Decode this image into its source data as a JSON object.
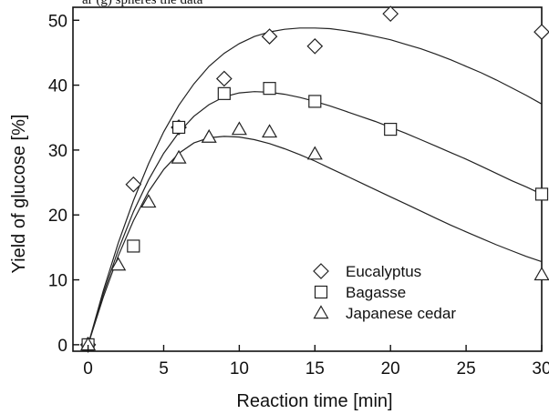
{
  "top_clipped_text": "ar (g) spheres the data",
  "chart_data": {
    "type": "scatter",
    "xlabel": "Reaction time [min]",
    "ylabel": "Yield of glucose [%]",
    "xlim": [
      -1,
      30
    ],
    "ylim": [
      -1,
      52
    ],
    "xticks": [
      0,
      5,
      10,
      15,
      20,
      25,
      30
    ],
    "xtick_labels": [
      "0",
      "5",
      "10",
      "15",
      "20",
      "25",
      "30"
    ],
    "yticks": [
      0,
      10,
      20,
      30,
      40,
      50
    ],
    "ytick_labels": [
      "0",
      "10",
      "20",
      "30",
      "40",
      "50"
    ],
    "grid": false,
    "legend_position": "bottom-right",
    "series": [
      {
        "name": "Eucalyptus",
        "marker": "diamond",
        "points": [
          [
            0,
            0
          ],
          [
            3,
            24.7
          ],
          [
            6,
            33.5
          ],
          [
            9,
            41
          ],
          [
            12,
            47.5
          ],
          [
            15,
            46
          ],
          [
            20,
            51
          ],
          [
            30,
            48.2
          ]
        ],
        "fit": [
          [
            0,
            0
          ],
          [
            1,
            8.3
          ],
          [
            2,
            15.7
          ],
          [
            3,
            22.2
          ],
          [
            4,
            27.9
          ],
          [
            5,
            32.8
          ],
          [
            6,
            36.9
          ],
          [
            7,
            40.2
          ],
          [
            8,
            42.9
          ],
          [
            9,
            44.9
          ],
          [
            10,
            46.4
          ],
          [
            11,
            47.5
          ],
          [
            12,
            48.2
          ],
          [
            13,
            48.6
          ],
          [
            14,
            48.8
          ],
          [
            15,
            48.8
          ],
          [
            16,
            48.7
          ],
          [
            17,
            48.4
          ],
          [
            18,
            48.0
          ],
          [
            19,
            47.5
          ],
          [
            20,
            47.0
          ],
          [
            21,
            46.3
          ],
          [
            22,
            45.6
          ],
          [
            23,
            44.8
          ],
          [
            24,
            43.9
          ],
          [
            25,
            42.9
          ],
          [
            26,
            41.9
          ],
          [
            27,
            40.8
          ],
          [
            28,
            39.6
          ],
          [
            29,
            38.4
          ],
          [
            30,
            37.1
          ]
        ]
      },
      {
        "name": "Bagasse",
        "marker": "square",
        "points": [
          [
            0,
            0
          ],
          [
            3,
            15.2
          ],
          [
            6,
            33.5
          ],
          [
            9,
            38.7
          ],
          [
            12,
            39.5
          ],
          [
            15,
            37.5
          ],
          [
            20,
            33.2
          ],
          [
            30,
            23.2
          ]
        ],
        "fit": [
          [
            0,
            0
          ],
          [
            1,
            7.8
          ],
          [
            2,
            14.6
          ],
          [
            3,
            20.5
          ],
          [
            4,
            25.4
          ],
          [
            5,
            29.5
          ],
          [
            6,
            32.7
          ],
          [
            7,
            35.2
          ],
          [
            8,
            37.0
          ],
          [
            9,
            38.2
          ],
          [
            10,
            38.8
          ],
          [
            11,
            39.0
          ],
          [
            12,
            38.9
          ],
          [
            13,
            38.6
          ],
          [
            14,
            38.1
          ],
          [
            15,
            37.5
          ],
          [
            16,
            36.8
          ],
          [
            17,
            36.0
          ],
          [
            18,
            35.2
          ],
          [
            19,
            34.4
          ],
          [
            20,
            33.5
          ],
          [
            21,
            32.6
          ],
          [
            22,
            31.6
          ],
          [
            23,
            30.6
          ],
          [
            24,
            29.6
          ],
          [
            25,
            28.6
          ],
          [
            26,
            27.5
          ],
          [
            27,
            26.4
          ],
          [
            28,
            25.3
          ],
          [
            29,
            24.3
          ],
          [
            30,
            23.2
          ]
        ]
      },
      {
        "name": "Japanese cedar",
        "marker": "triangle",
        "points": [
          [
            0,
            0
          ],
          [
            2,
            12.3
          ],
          [
            4,
            22
          ],
          [
            6,
            28.8
          ],
          [
            8,
            32
          ],
          [
            10,
            33.2
          ],
          [
            12,
            32.8
          ],
          [
            15,
            29.4
          ],
          [
            30,
            10.8
          ]
        ],
        "fit": [
          [
            0,
            0
          ],
          [
            1,
            7.3
          ],
          [
            2,
            13.7
          ],
          [
            3,
            19.1
          ],
          [
            4,
            23.6
          ],
          [
            5,
            27.0
          ],
          [
            6,
            29.5
          ],
          [
            7,
            31.1
          ],
          [
            8,
            31.9
          ],
          [
            9,
            32.1
          ],
          [
            10,
            32.0
          ],
          [
            11,
            31.6
          ],
          [
            12,
            31.0
          ],
          [
            13,
            30.2
          ],
          [
            14,
            29.3
          ],
          [
            15,
            28.3
          ],
          [
            16,
            27.2
          ],
          [
            17,
            26.1
          ],
          [
            18,
            25.0
          ],
          [
            19,
            23.9
          ],
          [
            20,
            22.8
          ],
          [
            21,
            21.7
          ],
          [
            22,
            20.6
          ],
          [
            23,
            19.5
          ],
          [
            24,
            18.4
          ],
          [
            25,
            17.4
          ],
          [
            26,
            16.4
          ],
          [
            27,
            15.4
          ],
          [
            28,
            14.5
          ],
          [
            29,
            13.6
          ],
          [
            30,
            12.8
          ]
        ]
      }
    ]
  }
}
